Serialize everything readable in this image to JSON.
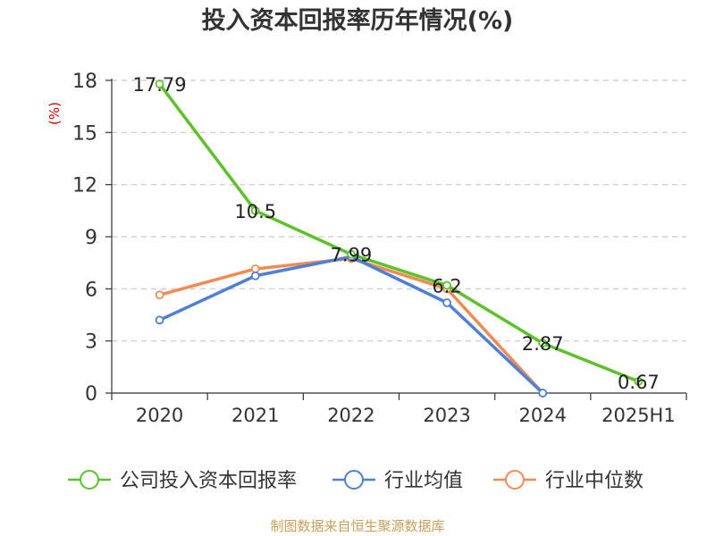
{
  "chart_data": {
    "type": "line",
    "title": "投入资本回报率历年情况(%)",
    "ylabel": "(%)",
    "xlabel": "",
    "categories": [
      "2020",
      "2021",
      "2022",
      "2023",
      "2024",
      "2025H1"
    ],
    "ylim": [
      0,
      18
    ],
    "yticks": [
      0,
      3,
      6,
      9,
      12,
      15,
      18
    ],
    "grid": true,
    "legend_position": "bottom",
    "series": [
      {
        "name": "公司投入资本回报率",
        "color": "#5dc22a",
        "values": [
          17.79,
          10.5,
          7.99,
          6.2,
          2.87,
          0.67
        ],
        "show_labels": true
      },
      {
        "name": "行业均值",
        "color": "#4f7fd6",
        "values": [
          4.2,
          6.75,
          7.85,
          5.2,
          0.0,
          null
        ],
        "show_labels": false
      },
      {
        "name": "行业中位数",
        "color": "#f38a50",
        "values": [
          5.65,
          7.15,
          7.75,
          6.0,
          0.0,
          null
        ],
        "show_labels": false
      }
    ],
    "data_labels": [
      "17.79",
      "10.5",
      "7.99",
      "6.2",
      "2.87",
      "0.67"
    ]
  },
  "source": "制图数据来自恒生聚源数据库"
}
